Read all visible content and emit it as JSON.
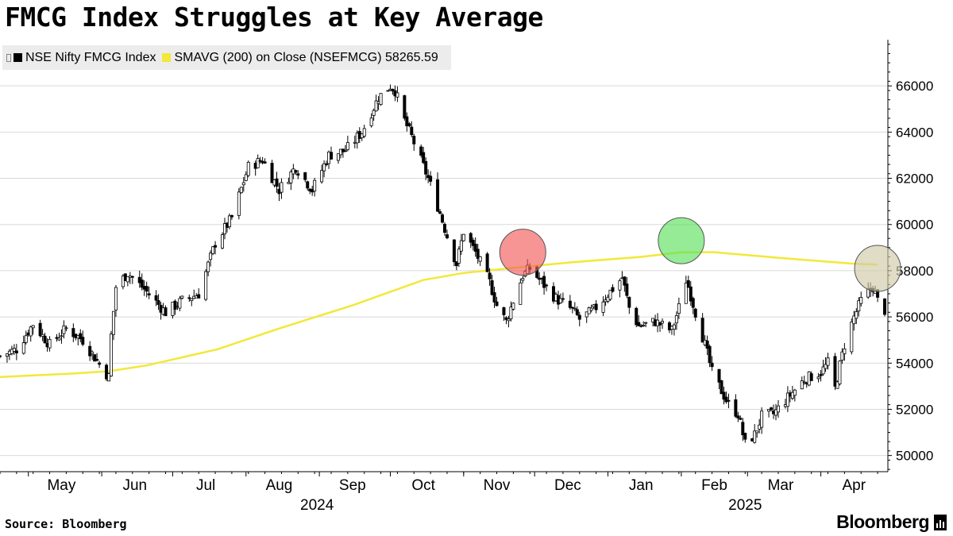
{
  "title": "FMCG Index Struggles at Key Average",
  "legend": {
    "series1": "NSE Nifty FMCG Index",
    "series2": "SMAVG (200)  on Close (NSEFMCG) 58265.59"
  },
  "source": "Source: Bloomberg",
  "brand": "Bloomberg",
  "colors": {
    "candle": "#000000",
    "sma": "#f2e839",
    "red_marker": "#f25c5c",
    "green_marker": "#5ee05e",
    "tan_marker": "#cfc9a6"
  },
  "chart_data": {
    "type": "candlestick",
    "y_ticks": [
      50000,
      52000,
      54000,
      56000,
      58000,
      60000,
      62000,
      64000,
      66000
    ],
    "y_tick_labels": [
      "50000",
      "52000",
      "54000",
      "56000",
      "58000",
      "60000",
      "62000",
      "64000",
      "66000"
    ],
    "ylim": [
      49300,
      68000
    ],
    "x_labels": [
      {
        "label": "May",
        "date": "2024-05-15"
      },
      {
        "label": "Jun",
        "date": "2024-06-15"
      },
      {
        "label": "Jul",
        "date": "2024-07-15"
      },
      {
        "label": "Aug",
        "date": "2024-08-15"
      },
      {
        "label": "Sep",
        "date": "2024-09-15"
      },
      {
        "label": "Oct",
        "date": "2024-10-15"
      },
      {
        "label": "Nov",
        "date": "2024-11-15"
      },
      {
        "label": "Dec",
        "date": "2024-12-15"
      },
      {
        "label": "Jan",
        "date": "2025-01-15"
      },
      {
        "label": "Feb",
        "date": "2025-02-15"
      },
      {
        "label": "Mar",
        "date": "2025-03-15"
      },
      {
        "label": "Apr",
        "date": "2025-04-15"
      }
    ],
    "year_labels": [
      {
        "label": "2024",
        "date": "2024-08-31"
      },
      {
        "label": "2025",
        "date": "2025-02-28"
      }
    ],
    "xlim": [
      "2024-04-19",
      "2025-04-29"
    ],
    "anchors": [
      [
        "2024-04-19",
        54300
      ],
      [
        "2024-04-26",
        54600
      ],
      [
        "2024-05-03",
        55700
      ],
      [
        "2024-05-10",
        54800
      ],
      [
        "2024-05-17",
        55500
      ],
      [
        "2024-05-24",
        55000
      ],
      [
        "2024-06-01",
        53800
      ],
      [
        "2024-06-04",
        53400
      ],
      [
        "2024-06-05",
        55200
      ],
      [
        "2024-06-07",
        57300
      ],
      [
        "2024-06-12",
        57900
      ],
      [
        "2024-06-19",
        57200
      ],
      [
        "2024-06-28",
        56200
      ],
      [
        "2024-07-05",
        56700
      ],
      [
        "2024-07-12",
        57000
      ],
      [
        "2024-07-19",
        59200
      ],
      [
        "2024-07-26",
        60300
      ],
      [
        "2024-08-02",
        62500
      ],
      [
        "2024-08-08",
        62800
      ],
      [
        "2024-08-15",
        61500
      ],
      [
        "2024-08-22",
        62500
      ],
      [
        "2024-08-29",
        61500
      ],
      [
        "2024-09-05",
        63000
      ],
      [
        "2024-09-12",
        63200
      ],
      [
        "2024-09-19",
        64000
      ],
      [
        "2024-09-26",
        65500
      ],
      [
        "2024-10-01",
        66000
      ],
      [
        "2024-10-03",
        65800
      ],
      [
        "2024-10-07",
        64500
      ],
      [
        "2024-10-10",
        63800
      ],
      [
        "2024-10-17",
        62000
      ],
      [
        "2024-10-22",
        60500
      ],
      [
        "2024-10-25",
        59500
      ],
      [
        "2024-10-29",
        58300
      ],
      [
        "2024-11-01",
        59700
      ],
      [
        "2024-11-06",
        58800
      ],
      [
        "2024-11-12",
        57500
      ],
      [
        "2024-11-15",
        56500
      ],
      [
        "2024-11-19",
        55800
      ],
      [
        "2024-11-22",
        56700
      ],
      [
        "2024-11-26",
        57800
      ],
      [
        "2024-11-29",
        58100
      ],
      [
        "2024-12-04",
        57500
      ],
      [
        "2024-12-10",
        56800
      ],
      [
        "2024-12-17",
        56300
      ],
      [
        "2024-12-20",
        55900
      ],
      [
        "2024-12-26",
        56300
      ],
      [
        "2025-01-02",
        57100
      ],
      [
        "2025-01-07",
        57700
      ],
      [
        "2025-01-10",
        56400
      ],
      [
        "2025-01-14",
        55600
      ],
      [
        "2025-01-21",
        55800
      ],
      [
        "2025-01-28",
        55400
      ],
      [
        "2025-01-31",
        56400
      ],
      [
        "2025-02-01",
        58200
      ],
      [
        "2025-02-04",
        57300
      ],
      [
        "2025-02-07",
        56200
      ],
      [
        "2025-02-11",
        54800
      ],
      [
        "2025-02-14",
        53600
      ],
      [
        "2025-02-18",
        52800
      ],
      [
        "2025-02-21",
        52200
      ],
      [
        "2025-02-25",
        51800
      ],
      [
        "2025-02-28",
        50500
      ],
      [
        "2025-03-04",
        50900
      ],
      [
        "2025-03-07",
        51700
      ],
      [
        "2025-03-12",
        51800
      ],
      [
        "2025-03-18",
        52500
      ],
      [
        "2025-03-25",
        53300
      ],
      [
        "2025-04-01",
        53600
      ],
      [
        "2025-04-04",
        54000
      ],
      [
        "2025-04-07",
        52900
      ],
      [
        "2025-04-09",
        53900
      ],
      [
        "2025-04-11",
        54800
      ],
      [
        "2025-04-15",
        56000
      ],
      [
        "2025-04-18",
        56700
      ],
      [
        "2025-04-23",
        57300
      ],
      [
        "2025-04-25",
        56700
      ],
      [
        "2025-04-28",
        56300
      ]
    ],
    "sma": [
      [
        "2024-04-19",
        53400
      ],
      [
        "2024-05-20",
        53550
      ],
      [
        "2024-06-04",
        53650
      ],
      [
        "2024-06-20",
        53900
      ],
      [
        "2024-07-20",
        54600
      ],
      [
        "2024-08-15",
        55500
      ],
      [
        "2024-09-15",
        56500
      ],
      [
        "2024-10-15",
        57600
      ],
      [
        "2024-11-01",
        57900
      ],
      [
        "2024-11-15",
        58050
      ],
      [
        "2024-12-15",
        58350
      ],
      [
        "2025-01-15",
        58600
      ],
      [
        "2025-02-01",
        58800
      ],
      [
        "2025-02-15",
        58800
      ],
      [
        "2025-03-15",
        58550
      ],
      [
        "2025-04-15",
        58300
      ],
      [
        "2025-04-25",
        58265
      ]
    ],
    "highlights": [
      {
        "date": "2024-11-26",
        "value": 58800,
        "color": "#f25c5c"
      },
      {
        "date": "2025-02-01",
        "value": 59300,
        "color": "#5ee05e"
      },
      {
        "date": "2025-04-25",
        "value": 58100,
        "color": "#cfc9a6"
      }
    ]
  }
}
